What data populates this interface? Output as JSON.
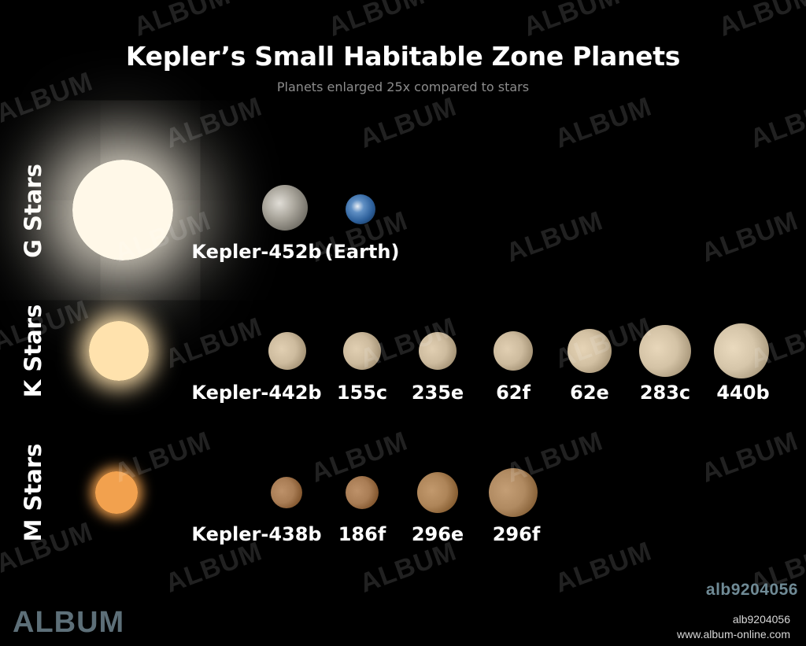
{
  "title": "Kepler’s Small Habitable Zone Planets",
  "subtitle": "Planets enlarged 25x compared to stars",
  "rows": [
    {
      "label": "G Stars",
      "star_color": "#fff8e8",
      "planets": [
        {
          "name": "Kepler-452b",
          "color": "#9b9890"
        },
        {
          "name": "(Earth)",
          "color": "#3d6fa8"
        }
      ]
    },
    {
      "label": "K Stars",
      "star_color": "#ffe2ad",
      "planets": [
        {
          "name": "Kepler-442b",
          "color": "#cdbb9e"
        },
        {
          "name": "155c",
          "color": "#cdbb9e"
        },
        {
          "name": "235e",
          "color": "#cdbb9e"
        },
        {
          "name": "62f",
          "color": "#cdbb9e"
        },
        {
          "name": "62e",
          "color": "#d2c0a2"
        },
        {
          "name": "283c",
          "color": "#d4c3a6"
        },
        {
          "name": "440b",
          "color": "#d6c6aa"
        }
      ]
    },
    {
      "label": "M Stars",
      "star_color": "#f2a14e",
      "planets": [
        {
          "name": "Kepler-438b",
          "color": "#a97d55"
        },
        {
          "name": "186f",
          "color": "#a97d55"
        },
        {
          "name": "296e",
          "color": "#ae8559"
        },
        {
          "name": "296f",
          "color": "#b08a61"
        }
      ]
    }
  ],
  "watermark": "ALBUM",
  "brand": "ALBUM",
  "image_code": "alb9204056",
  "image_code_small": "alb9204056",
  "url": "www.album-online.com"
}
